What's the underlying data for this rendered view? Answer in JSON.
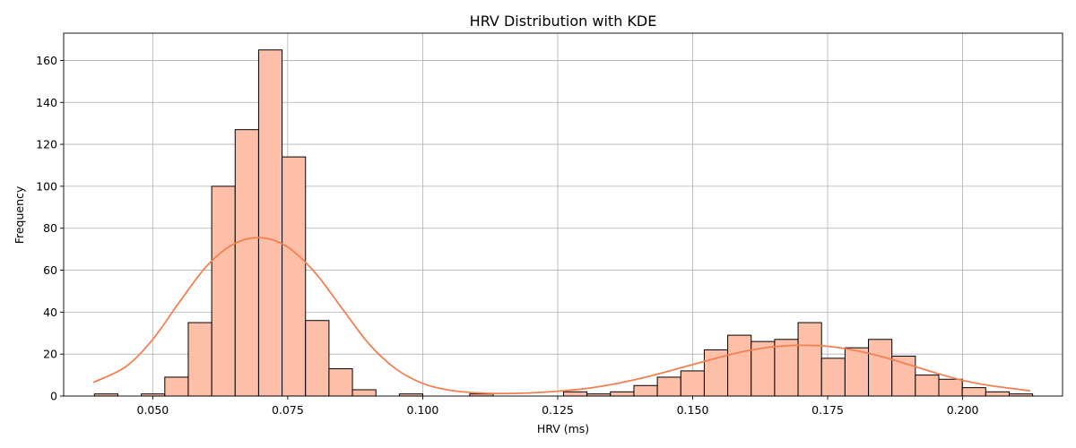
{
  "chart_data": {
    "type": "bar",
    "title": "HRV Distribution with KDE",
    "xlabel": "HRV (ms)",
    "ylabel": "Frequency",
    "xlim": [
      0.0335,
      0.2185
    ],
    "ylim": [
      0,
      173
    ],
    "xticks": [
      0.05,
      0.075,
      0.1,
      0.125,
      0.15,
      0.175,
      0.2
    ],
    "xtick_labels": [
      "0.050",
      "0.075",
      "0.100",
      "0.125",
      "0.150",
      "0.175",
      "0.200"
    ],
    "yticks": [
      0,
      20,
      40,
      60,
      80,
      100,
      120,
      140,
      160
    ],
    "ytick_labels": [
      "0",
      "20",
      "40",
      "60",
      "80",
      "100",
      "120",
      "140",
      "160"
    ],
    "grid": true,
    "bar_color": "#fdbfa8",
    "kde_color": "#f4804f",
    "bins": {
      "start": 0.0392,
      "width": 0.004344,
      "counts": [
        1,
        0,
        1,
        9,
        35,
        100,
        127,
        165,
        114,
        36,
        13,
        3,
        0,
        1,
        0,
        0,
        1,
        0,
        0,
        0,
        2,
        1,
        2,
        5,
        9,
        12,
        22,
        29,
        26,
        27,
        35,
        18,
        23,
        27,
        19,
        10,
        8,
        4,
        2,
        1
      ]
    },
    "kde": {
      "x": [
        0.039,
        0.045,
        0.05,
        0.055,
        0.06,
        0.065,
        0.07,
        0.075,
        0.08,
        0.085,
        0.09,
        0.095,
        0.1,
        0.105,
        0.11,
        0.115,
        0.12,
        0.125,
        0.13,
        0.135,
        0.14,
        0.145,
        0.15,
        0.155,
        0.16,
        0.165,
        0.17,
        0.175,
        0.18,
        0.185,
        0.19,
        0.195,
        0.2,
        0.205,
        0.2125
      ],
      "y": [
        6.5,
        14,
        27,
        45,
        62,
        72.5,
        75.5,
        71,
        59,
        42,
        25,
        13,
        6,
        2.8,
        1.5,
        1.2,
        1.5,
        2.3,
        3.5,
        5.5,
        8.2,
        11.5,
        15,
        18.5,
        21.5,
        23.5,
        24.2,
        23.7,
        21.8,
        18.8,
        15,
        11,
        7.5,
        5,
        2.5
      ]
    }
  }
}
